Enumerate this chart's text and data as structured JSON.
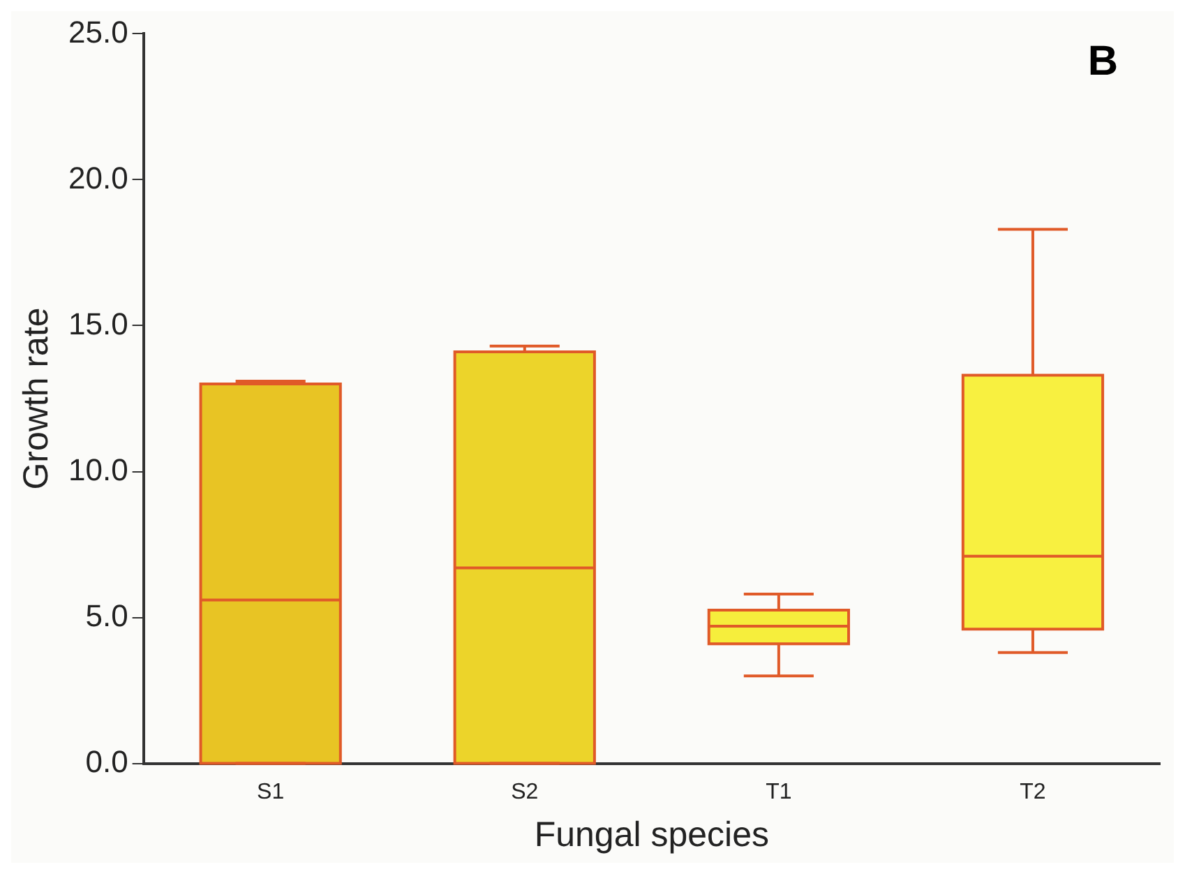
{
  "chart_data": {
    "type": "box",
    "xlabel": "Fungal species",
    "ylabel": "Growth rate",
    "annotations": [
      "B"
    ],
    "categories": [
      "S1",
      "S2",
      "T1",
      "T2"
    ],
    "boxes": [
      {
        "low": 0,
        "q1": 0,
        "median": 5.6,
        "q3": 13.0,
        "high": 13.1
      },
      {
        "low": 0,
        "q1": 0,
        "median": 6.7,
        "q3": 14.1,
        "high": 14.3
      },
      {
        "low": 3.0,
        "q1": 4.1,
        "median": 4.7,
        "q3": 5.25,
        "high": 5.8
      },
      {
        "low": 3.8,
        "q1": 4.6,
        "median": 7.1,
        "q3": 13.3,
        "high": 18.3
      }
    ],
    "colors": [
      "#e8c424",
      "#ecd42a",
      "#f6ee3c",
      "#f8f040"
    ],
    "ylim": [
      0,
      25
    ],
    "yticks": [
      {
        "value": 0,
        "label": "0.0"
      },
      {
        "value": 5,
        "label": "5.0"
      },
      {
        "value": 10,
        "label": "10.0"
      },
      {
        "value": 15,
        "label": "15.0"
      },
      {
        "value": 20,
        "label": "20.0"
      },
      {
        "value": 25,
        "label": "25.0"
      }
    ],
    "grid": false,
    "legend": false
  }
}
